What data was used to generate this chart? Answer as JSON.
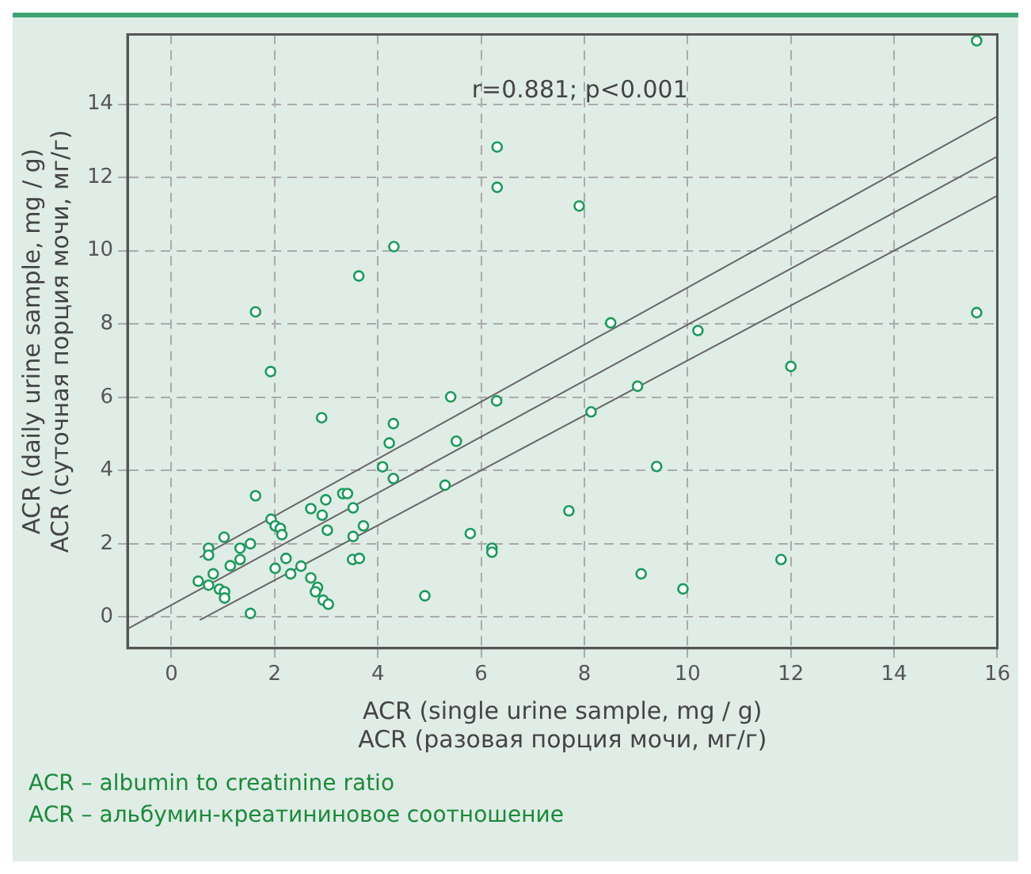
{
  "chart_data": {
    "type": "scatter",
    "xlabel": "ACR (single urine sample, mg / g)\nACR (разовая порция мочи, мг/г)",
    "ylabel": "ACR (daily urine sample, mg / g)\nACR (суточная порция мочи, мг/г)",
    "annotations": [
      "r=0.881; p<0.001",
      "ACR – albumin to creatinine ratio",
      "ACR – альбумин-креатининовое соотношение"
    ],
    "xlim": [
      -0.85,
      16
    ],
    "ylim": [
      -0.85,
      15.9
    ],
    "xticks": [
      0,
      2,
      4,
      6,
      8,
      10,
      12,
      14,
      16
    ],
    "yticks": [
      0,
      2,
      4,
      6,
      8,
      10,
      12,
      14
    ],
    "grid": true,
    "legend": false,
    "marker": "circle",
    "series": [
      {
        "type": "scatter",
        "color": "#1a9a5a",
        "x": [
          0.52,
          0.72,
          0.72,
          0.72,
          0.81,
          0.93,
          1.03,
          1.03,
          1.02,
          1.14,
          1.33,
          1.33,
          1.53,
          1.53,
          1.63,
          1.93,
          1.92,
          2.01,
          2.11,
          2.14,
          2.01,
          2.22,
          2.31,
          2.51,
          2.7,
          2.7,
          2.83,
          2.79,
          2.91,
          2.92,
          2.99,
          3.02,
          2.94,
          3.04,
          3.32,
          3.41,
          3.52,
          3.52,
          3.51,
          3.64,
          3.72,
          4.09,
          4.22,
          4.3,
          4.3,
          4.91,
          5.3,
          5.41,
          5.52,
          5.79,
          6.21,
          6.21,
          6.3,
          1.63,
          3.63,
          4.31,
          6.31,
          6.31,
          7.9,
          8.51,
          10.2,
          15.6,
          15.6,
          12.0,
          9.03,
          8.13,
          9.4,
          7.7,
          9.1,
          9.91,
          11.81
        ],
        "values": [
          0.98,
          1.88,
          1.69,
          0.87,
          1.18,
          0.76,
          0.69,
          0.52,
          2.18,
          1.4,
          1.88,
          1.57,
          2.0,
          0.1,
          3.31,
          2.67,
          6.7,
          2.49,
          2.42,
          2.25,
          1.33,
          1.6,
          1.18,
          1.39,
          2.96,
          1.07,
          0.81,
          0.69,
          5.44,
          2.78,
          3.2,
          2.37,
          0.46,
          0.35,
          3.37,
          3.37,
          2.98,
          2.2,
          1.57,
          1.6,
          2.49,
          4.1,
          4.75,
          5.28,
          3.78,
          0.58,
          3.6,
          6.01,
          4.8,
          2.28,
          1.88,
          1.77,
          5.9,
          8.33,
          9.31,
          10.11,
          12.83,
          11.73,
          11.22,
          8.03,
          7.82,
          15.73,
          8.31,
          6.84,
          6.3,
          5.6,
          4.11,
          2.9,
          1.18,
          0.77,
          1.57
        ]
      },
      {
        "type": "line",
        "color": "#666666",
        "marker": "none",
        "x": [
          -0.85,
          16
        ],
        "values": [
          -0.32,
          12.57
        ]
      },
      {
        "type": "line",
        "color": "#666666",
        "marker": "none",
        "x": [
          0.55,
          16
        ],
        "values": [
          1.63,
          13.67
        ]
      },
      {
        "type": "line",
        "color": "#666666",
        "marker": "none",
        "x": [
          0.55,
          16
        ],
        "values": [
          -0.08,
          11.5
        ]
      }
    ]
  }
}
